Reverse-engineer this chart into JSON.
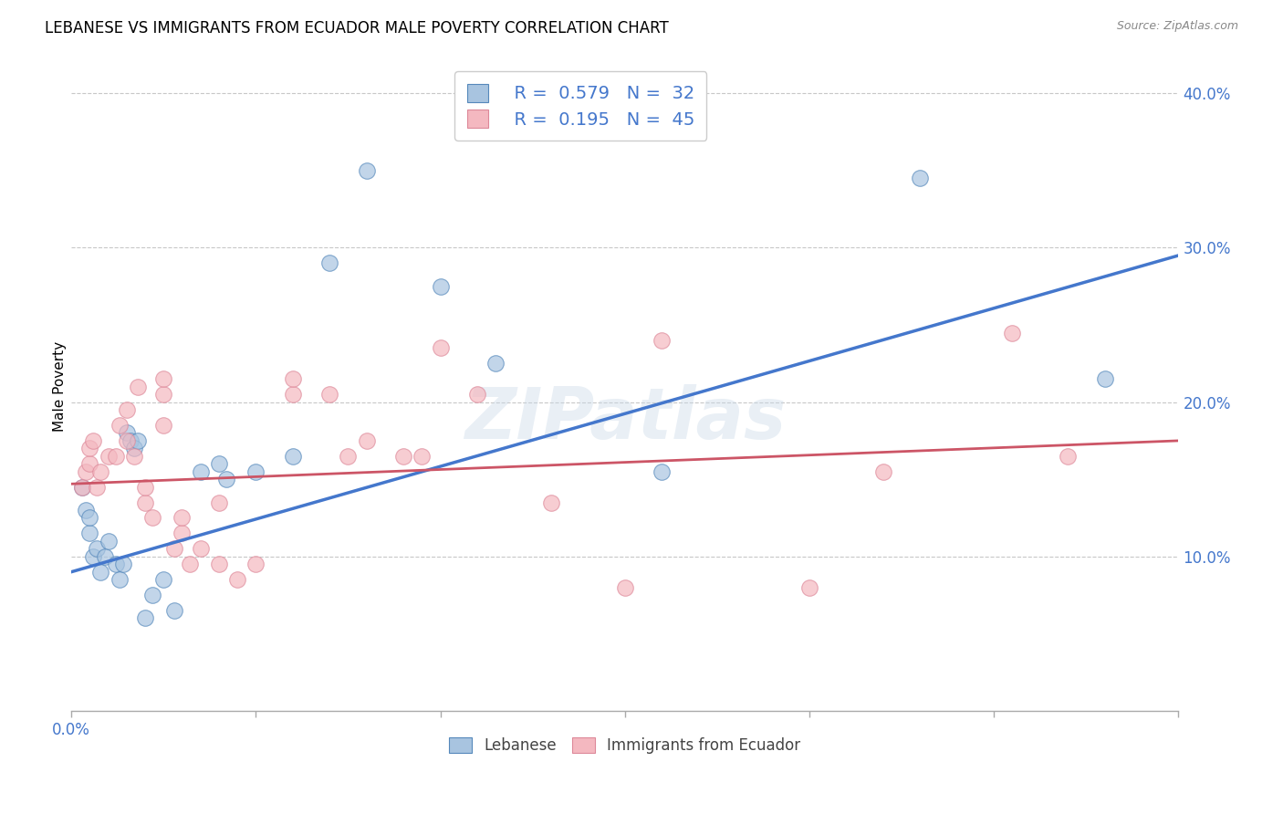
{
  "title": "LEBANESE VS IMMIGRANTS FROM ECUADOR MALE POVERTY CORRELATION CHART",
  "source": "Source: ZipAtlas.com",
  "ylabel": "Male Poverty",
  "watermark": "ZIPatlas",
  "xlim": [
    0.0,
    0.3
  ],
  "ylim": [
    0.0,
    0.42
  ],
  "yticks": [
    0.1,
    0.2,
    0.3,
    0.4
  ],
  "ytick_labels": [
    "10.0%",
    "20.0%",
    "30.0%",
    "40.0%"
  ],
  "xtick_positions": [
    0.0,
    0.05,
    0.1,
    0.15,
    0.2,
    0.25,
    0.3
  ],
  "xtick_labels_shown": {
    "0.0": "0.0%",
    "0.30": "30.0%"
  },
  "grid_color": "#c8c8c8",
  "background_color": "#ffffff",
  "blue_fill": "#a8c4e0",
  "pink_fill": "#f4b8c0",
  "blue_edge": "#5588bb",
  "pink_edge": "#dd8899",
  "blue_line_color": "#4477cc",
  "pink_line_color": "#cc5566",
  "tick_color": "#4477cc",
  "legend_R_blue": "0.579",
  "legend_N_blue": "32",
  "legend_R_pink": "0.195",
  "legend_N_pink": "45",
  "legend_label_blue": "Lebanese",
  "legend_label_pink": "Immigrants from Ecuador",
  "blue_scatter": [
    [
      0.003,
      0.145
    ],
    [
      0.004,
      0.13
    ],
    [
      0.005,
      0.115
    ],
    [
      0.005,
      0.125
    ],
    [
      0.006,
      0.1
    ],
    [
      0.007,
      0.105
    ],
    [
      0.008,
      0.09
    ],
    [
      0.009,
      0.1
    ],
    [
      0.01,
      0.11
    ],
    [
      0.012,
      0.095
    ],
    [
      0.013,
      0.085
    ],
    [
      0.014,
      0.095
    ],
    [
      0.015,
      0.18
    ],
    [
      0.016,
      0.175
    ],
    [
      0.017,
      0.17
    ],
    [
      0.018,
      0.175
    ],
    [
      0.02,
      0.06
    ],
    [
      0.022,
      0.075
    ],
    [
      0.025,
      0.085
    ],
    [
      0.028,
      0.065
    ],
    [
      0.035,
      0.155
    ],
    [
      0.04,
      0.16
    ],
    [
      0.042,
      0.15
    ],
    [
      0.05,
      0.155
    ],
    [
      0.06,
      0.165
    ],
    [
      0.07,
      0.29
    ],
    [
      0.08,
      0.35
    ],
    [
      0.1,
      0.275
    ],
    [
      0.115,
      0.225
    ],
    [
      0.16,
      0.155
    ],
    [
      0.23,
      0.345
    ],
    [
      0.28,
      0.215
    ]
  ],
  "pink_scatter": [
    [
      0.003,
      0.145
    ],
    [
      0.004,
      0.155
    ],
    [
      0.005,
      0.16
    ],
    [
      0.005,
      0.17
    ],
    [
      0.006,
      0.175
    ],
    [
      0.007,
      0.145
    ],
    [
      0.008,
      0.155
    ],
    [
      0.01,
      0.165
    ],
    [
      0.012,
      0.165
    ],
    [
      0.013,
      0.185
    ],
    [
      0.015,
      0.175
    ],
    [
      0.015,
      0.195
    ],
    [
      0.017,
      0.165
    ],
    [
      0.018,
      0.21
    ],
    [
      0.02,
      0.135
    ],
    [
      0.02,
      0.145
    ],
    [
      0.022,
      0.125
    ],
    [
      0.025,
      0.185
    ],
    [
      0.025,
      0.205
    ],
    [
      0.025,
      0.215
    ],
    [
      0.028,
      0.105
    ],
    [
      0.03,
      0.115
    ],
    [
      0.03,
      0.125
    ],
    [
      0.032,
      0.095
    ],
    [
      0.035,
      0.105
    ],
    [
      0.04,
      0.095
    ],
    [
      0.04,
      0.135
    ],
    [
      0.045,
      0.085
    ],
    [
      0.05,
      0.095
    ],
    [
      0.06,
      0.205
    ],
    [
      0.06,
      0.215
    ],
    [
      0.07,
      0.205
    ],
    [
      0.075,
      0.165
    ],
    [
      0.08,
      0.175
    ],
    [
      0.09,
      0.165
    ],
    [
      0.095,
      0.165
    ],
    [
      0.1,
      0.235
    ],
    [
      0.11,
      0.205
    ],
    [
      0.13,
      0.135
    ],
    [
      0.15,
      0.08
    ],
    [
      0.16,
      0.24
    ],
    [
      0.2,
      0.08
    ],
    [
      0.22,
      0.155
    ],
    [
      0.255,
      0.245
    ],
    [
      0.27,
      0.165
    ]
  ],
  "blue_line": [
    [
      0.0,
      0.09
    ],
    [
      0.3,
      0.295
    ]
  ],
  "pink_line": [
    [
      0.0,
      0.147
    ],
    [
      0.3,
      0.175
    ]
  ],
  "title_fontsize": 12,
  "axis_label_fontsize": 11,
  "tick_fontsize": 12
}
